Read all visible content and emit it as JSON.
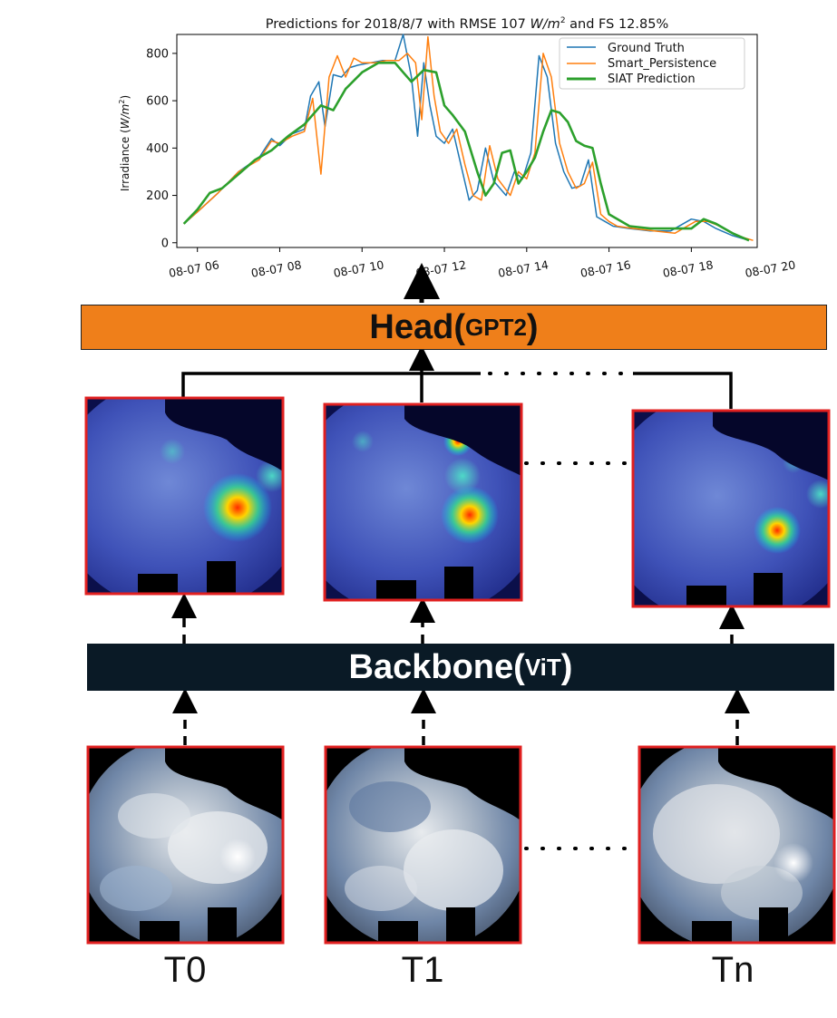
{
  "chart_data": {
    "type": "line",
    "title": "Predictions for 2018/8/7 with RMSE 107 W/m² and FS 12.85%",
    "title_parts": {
      "prefix": "Predictions for 2018/8/7 with RMSE 107 ",
      "unit_w": "W",
      "unit_m": "/m",
      "unit_sup": "2",
      "suffix": " and FS 12.85%"
    },
    "ylabel": "Irradiance (W/m²)",
    "ylabel_parts": {
      "prefix": "Irradiance (",
      "unit": "W/m",
      "sup": "2",
      "suffix": ")"
    },
    "xlabel": "",
    "xlim": [
      5.5,
      19.6
    ],
    "ylim": [
      -20,
      880
    ],
    "yticks": [
      0,
      200,
      400,
      600,
      800
    ],
    "xticks": [
      6,
      8,
      10,
      12,
      14,
      16,
      18,
      20
    ],
    "xtick_labels": [
      "08-07 06",
      "08-07 08",
      "08-07 10",
      "08-07 12",
      "08-07 14",
      "08-07 16",
      "08-07 18",
      "08-07 20"
    ],
    "legend_position": "top-right",
    "series": [
      {
        "name": "Ground Truth",
        "color": "#1f77b4",
        "x": [
          5.67,
          6.0,
          6.5,
          7.0,
          7.5,
          7.8,
          8.0,
          8.3,
          8.6,
          8.75,
          8.95,
          9.1,
          9.3,
          9.5,
          9.7,
          9.9,
          10.2,
          10.5,
          10.8,
          11.0,
          11.2,
          11.35,
          11.5,
          11.65,
          11.8,
          12.0,
          12.2,
          12.4,
          12.6,
          12.8,
          13.0,
          13.2,
          13.5,
          13.7,
          13.9,
          14.1,
          14.3,
          14.5,
          14.7,
          14.9,
          15.1,
          15.3,
          15.5,
          15.7,
          15.9,
          16.1,
          16.5,
          17.0,
          17.5,
          18.0,
          18.3,
          18.6,
          19.0,
          19.4
        ],
        "y": [
          80,
          130,
          210,
          300,
          360,
          440,
          410,
          460,
          480,
          620,
          680,
          490,
          710,
          700,
          740,
          750,
          760,
          770,
          770,
          880,
          700,
          450,
          760,
          580,
          450,
          420,
          480,
          330,
          180,
          220,
          400,
          260,
          200,
          300,
          270,
          380,
          790,
          700,
          420,
          300,
          230,
          240,
          350,
          110,
          90,
          70,
          60,
          50,
          50,
          100,
          90,
          60,
          30,
          10
        ]
      },
      {
        "name": "Smart_Persistence",
        "color": "#ff7f0e",
        "x": [
          5.67,
          6.0,
          6.5,
          7.0,
          7.5,
          7.8,
          8.0,
          8.3,
          8.6,
          8.8,
          9.0,
          9.2,
          9.4,
          9.6,
          9.8,
          10.0,
          10.3,
          10.6,
          10.9,
          11.1,
          11.3,
          11.45,
          11.6,
          11.75,
          11.9,
          12.1,
          12.3,
          12.5,
          12.7,
          12.9,
          13.1,
          13.3,
          13.6,
          13.8,
          14.0,
          14.2,
          14.4,
          14.6,
          14.8,
          15.0,
          15.2,
          15.4,
          15.6,
          15.8,
          16.0,
          16.2,
          16.6,
          17.1,
          17.6,
          18.1,
          18.4,
          18.7,
          19.1,
          19.5
        ],
        "y": [
          80,
          130,
          210,
          300,
          350,
          430,
          420,
          450,
          470,
          610,
          290,
          700,
          790,
          700,
          780,
          760,
          760,
          770,
          770,
          800,
          760,
          520,
          870,
          620,
          470,
          420,
          480,
          330,
          200,
          180,
          410,
          270,
          200,
          300,
          270,
          380,
          800,
          700,
          420,
          300,
          230,
          250,
          340,
          120,
          90,
          70,
          60,
          50,
          40,
          90,
          90,
          70,
          30,
          10
        ]
      },
      {
        "name": "SIAT Prediction",
        "color": "#2ca02c",
        "x": [
          5.67,
          6.0,
          6.3,
          6.6,
          7.0,
          7.4,
          7.8,
          8.2,
          8.6,
          9.0,
          9.3,
          9.6,
          10.0,
          10.4,
          10.8,
          11.0,
          11.2,
          11.5,
          11.8,
          12.0,
          12.2,
          12.5,
          12.8,
          13.0,
          13.2,
          13.4,
          13.6,
          13.8,
          14.0,
          14.2,
          14.4,
          14.6,
          14.8,
          15.0,
          15.2,
          15.4,
          15.6,
          15.8,
          16.0,
          16.5,
          17.0,
          17.5,
          18.0,
          18.3,
          18.6,
          19.0,
          19.4
        ],
        "y": [
          80,
          140,
          210,
          230,
          290,
          350,
          390,
          450,
          500,
          580,
          560,
          650,
          720,
          760,
          760,
          720,
          680,
          730,
          720,
          580,
          540,
          470,
          300,
          200,
          250,
          380,
          390,
          250,
          300,
          360,
          470,
          560,
          550,
          510,
          430,
          410,
          400,
          250,
          120,
          70,
          60,
          60,
          60,
          100,
          80,
          40,
          10
        ]
      }
    ]
  },
  "blocks": {
    "head_main": "Head(",
    "head_sub": "GPT2",
    "head_close": ")",
    "backbone_main": "Backbone(",
    "backbone_sub": "ViT",
    "backbone_close": ")"
  },
  "time_labels": [
    "T0",
    "T1",
    "Tn"
  ],
  "colors": {
    "frame": "#e02020",
    "head": "#ef7f1a",
    "backbone": "#0a1a26"
  }
}
